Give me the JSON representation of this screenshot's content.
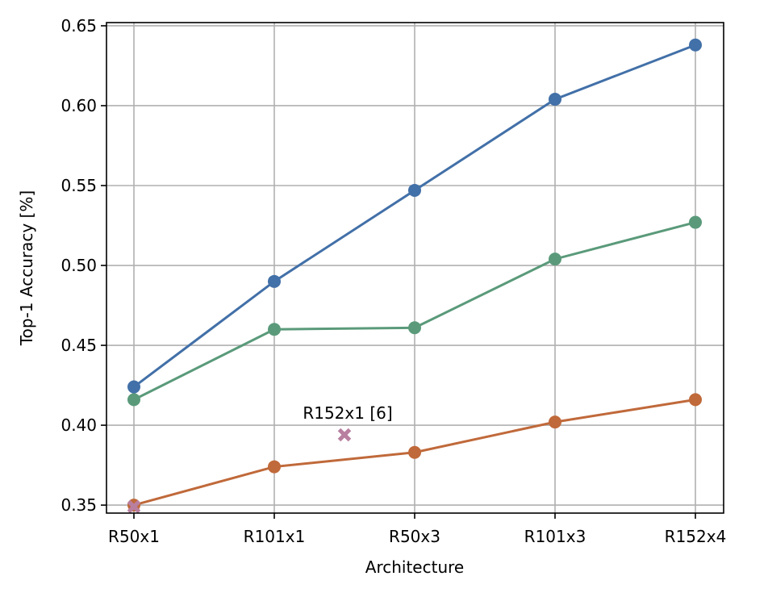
{
  "chart_data": {
    "type": "line",
    "xlabel": "Architecture",
    "ylabel": "Top-1 Accuracy [%]",
    "categories": [
      "R50x1",
      "R101x1",
      "R50x3",
      "R101x3",
      "R152x4"
    ],
    "yticks": [
      "0.35",
      "0.40",
      "0.45",
      "0.50",
      "0.55",
      "0.60",
      "0.65"
    ],
    "ylim": [
      0.345,
      0.652
    ],
    "grid": true,
    "series": [
      {
        "color": "#4270a8",
        "values": [
          0.424,
          0.49,
          0.547,
          0.604,
          0.638
        ]
      },
      {
        "color": "#5a9a7a",
        "values": [
          0.416,
          0.46,
          0.461,
          0.504,
          0.527
        ]
      },
      {
        "color": "#c0693a",
        "values": [
          0.35,
          0.374,
          0.383,
          0.402,
          0.416
        ]
      }
    ],
    "markers": [
      {
        "x": 0,
        "y": 0.349,
        "color": "#b87fa0",
        "symbol": "x"
      },
      {
        "x": 1.5,
        "y": 0.394,
        "color": "#b87fa0",
        "symbol": "x"
      }
    ],
    "annotations": [
      {
        "text": "R152x1 [6]",
        "x": 1.5,
        "y": 0.394
      }
    ]
  }
}
